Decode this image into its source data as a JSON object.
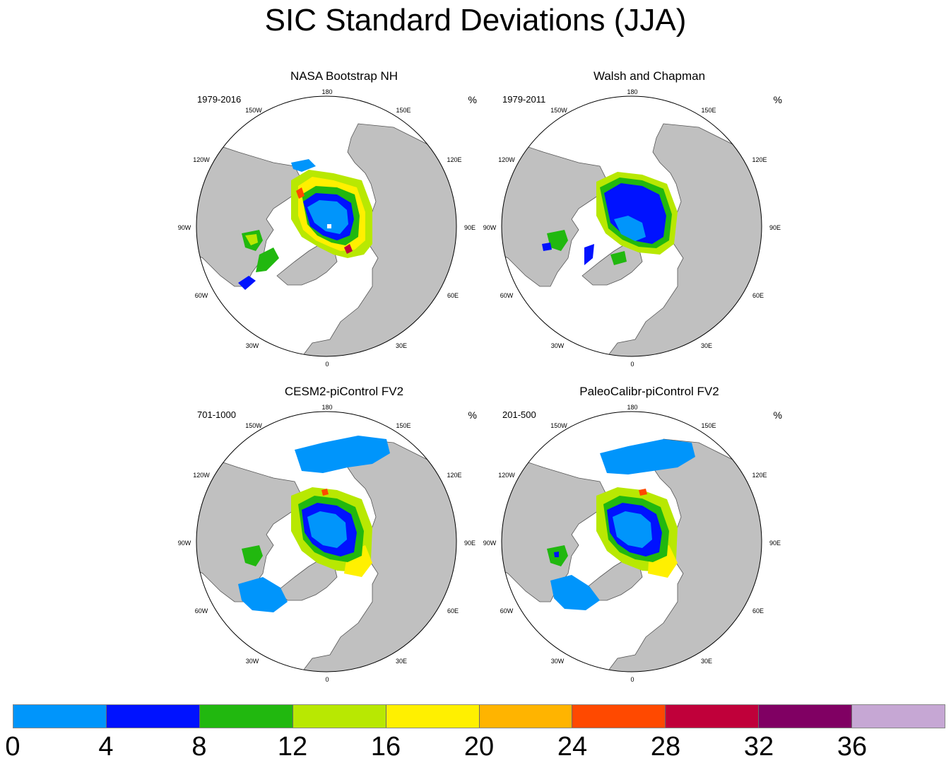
{
  "title": "SIC Standard Deviations (JJA)",
  "lon_labels": [
    "180",
    "150E",
    "120E",
    "90E",
    "60E",
    "30E",
    "0",
    "30W",
    "60W",
    "90W",
    "120W",
    "150W"
  ],
  "panels": [
    {
      "title": "NASA Bootstrap NH",
      "years": "1979-2016",
      "unit": "%"
    },
    {
      "title": "Walsh and Chapman",
      "years": "1979-2011",
      "unit": "%"
    },
    {
      "title": "CESM2-piControl FV2",
      "years": "701-1000",
      "unit": "%"
    },
    {
      "title": "PaleoCalibr-piControl FV2",
      "years": "201-500",
      "unit": "%"
    }
  ],
  "colorbar": {
    "colors": [
      "#0095fb",
      "#0012ff",
      "#21b80f",
      "#b8e802",
      "#fff000",
      "#ffb400",
      "#ff4900",
      "#c0003a",
      "#800063",
      "#c6a7d4"
    ],
    "ticks": [
      "0",
      "4",
      "8",
      "12",
      "16",
      "20",
      "24",
      "28",
      "32",
      "36"
    ]
  }
}
